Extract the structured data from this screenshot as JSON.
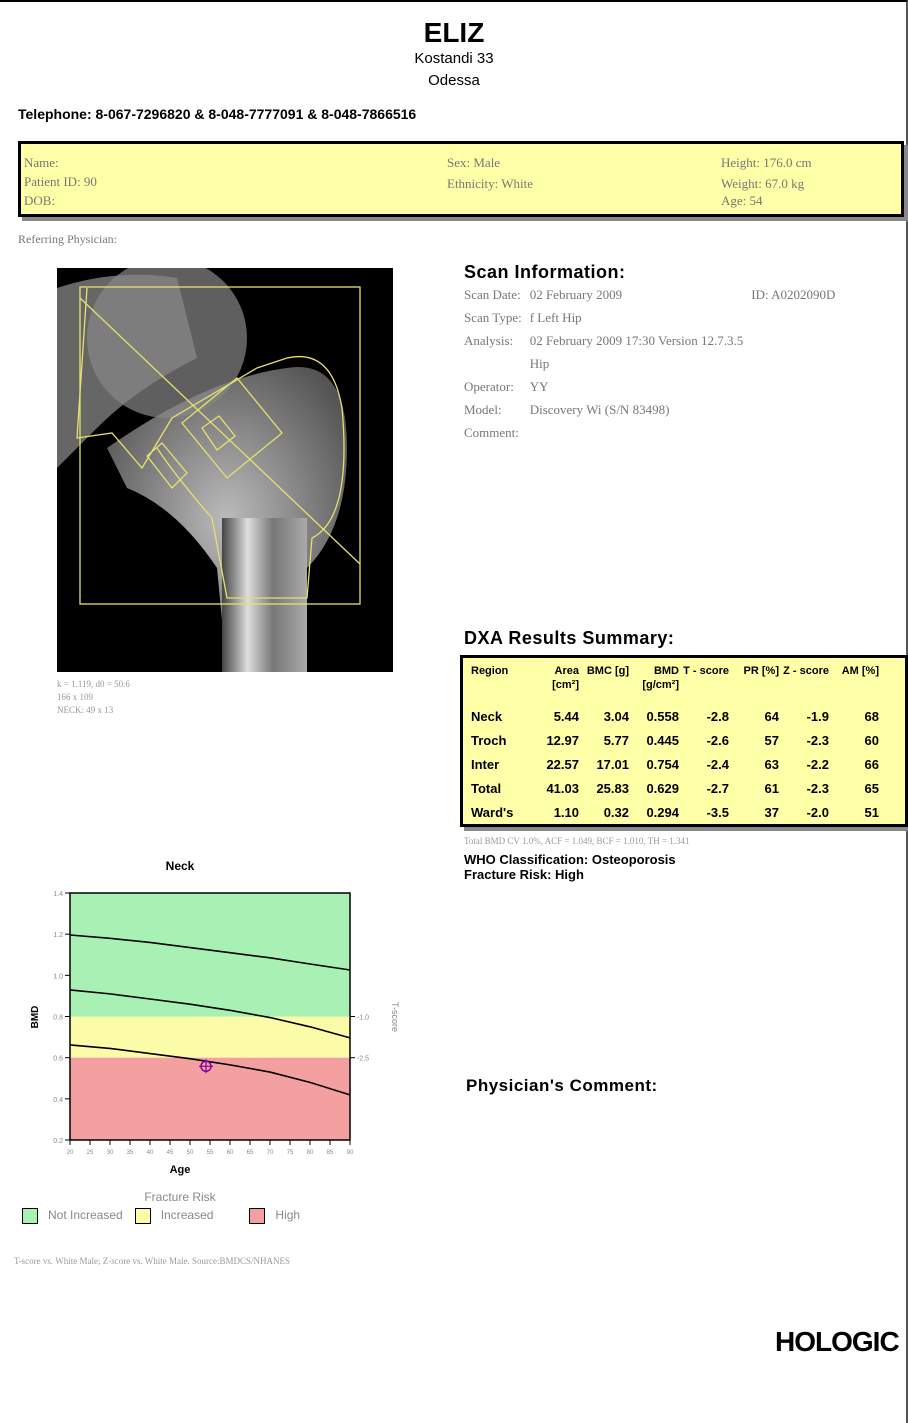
{
  "header": {
    "title": "ELIZ",
    "address": "Kostandi 33",
    "city": "Odessa",
    "phone": "Telephone: 8-067-7296820 & 8-048-7777091 & 8-048-7866516"
  },
  "patient": {
    "name": "Name:",
    "patient_id": "Patient ID: 90",
    "dob": "DOB:",
    "sex": "Sex: Male",
    "ethnicity": "Ethnicity: White",
    "height": "Height: 176.0 cm",
    "weight": "Weight: 67.0 kg",
    "age": "Age: 54"
  },
  "referring": "Referring Physician:",
  "image_caption": [
    "k = 1.119, d0 = 50.6",
    "166 x 109",
    "NECK: 49 x 13"
  ],
  "scan_info": {
    "title": "Scan Information:",
    "rows": [
      [
        "Scan Date:",
        "02 February 2009",
        "ID: A0202090D"
      ],
      [
        "Scan Type:",
        "f Left Hip"
      ],
      [
        "Analysis:",
        "02 February 2009 17:30 Version 12.7.3.5"
      ],
      [
        "",
        "Hip"
      ],
      [
        "Operator:",
        "YY"
      ],
      [
        "Model:",
        "Discovery Wi (S/N 83498)"
      ],
      [
        "Comment:"
      ]
    ]
  },
  "results": {
    "title": "DXA Results Summary:",
    "header": [
      "Region",
      "Area [cm²]",
      "BMC [g]",
      "BMD [g/cm²]",
      "T - score",
      "PR [%]",
      "Z - score",
      "AM [%]"
    ],
    "rows": [
      [
        "Neck",
        "5.44",
        "3.04",
        "0.558",
        "-2.8",
        "64",
        "-1.9",
        "68"
      ],
      [
        "Troch",
        "12.97",
        "5.77",
        "0.445",
        "-2.6",
        "57",
        "-2.3",
        "60"
      ],
      [
        "Inter",
        "22.57",
        "17.01",
        "0.754",
        "-2.4",
        "63",
        "-2.2",
        "66"
      ],
      [
        "Total",
        "41.03",
        "25.83",
        "0.629",
        "-2.7",
        "61",
        "-2.3",
        "65"
      ],
      [
        "Ward's",
        "1.10",
        "0.32",
        "0.294",
        "-3.5",
        "37",
        "-2.0",
        "51"
      ]
    ],
    "note": "Total BMD CV 1.0%, ACF = 1.049, BCF = 1.010, TH = 1.341",
    "who": "WHO Classification: Osteoporosis",
    "risk": "Fracture Risk: High"
  },
  "chart_data": {
    "type": "line",
    "title": "Neck",
    "x_label": "Age",
    "y_label": "BMD",
    "y2_label": "T-score",
    "xlim": [
      20,
      90
    ],
    "xticks": [
      20,
      25,
      30,
      35,
      40,
      45,
      50,
      55,
      60,
      65,
      70,
      75,
      80,
      85,
      90
    ],
    "ylim": [
      0.2,
      1.4
    ],
    "yticks": [
      0.2,
      0.4,
      0.6,
      0.8,
      {
        "value": 1,
        "label": "1.0"
      },
      1.2,
      1.4
    ],
    "y2lim": [
      -5.5,
      3.5
    ],
    "y2ticks": [
      {
        "value": -1,
        "label": "-1.0"
      },
      {
        "value": -2.5,
        "label": "-2.5"
      }
    ],
    "x": [
      20,
      30,
      40,
      50,
      60,
      70,
      80,
      90
    ],
    "series": [
      {
        "color": "#000000",
        "values": [
          1.196,
          1.18,
          1.16,
          1.135,
          1.11,
          1.085,
          1.055,
          1.026
        ]
      },
      {
        "color": "#000000",
        "values": [
          0.929,
          0.91,
          0.885,
          0.86,
          0.83,
          0.795,
          0.75,
          0.696
        ]
      },
      {
        "color": "#000000",
        "values": [
          0.662,
          0.645,
          0.62,
          0.595,
          0.565,
          0.53,
          0.48,
          0.419
        ]
      }
    ],
    "point": {
      "x": 54,
      "y": 0.558,
      "color": "#8000a0"
    },
    "legend_title": "Fracture Risk",
    "zones": [
      {
        "name": "Not Increased",
        "from": 0.8,
        "to": 1.4,
        "color": "#a8f0b4"
      },
      {
        "name": "Increased",
        "from": 0.6,
        "to": 0.8,
        "color": "#fbfba8"
      },
      {
        "name": "High",
        "from": 0.2,
        "to": 0.6,
        "color": "#f4a0a0"
      }
    ]
  },
  "footnote": "T-score vs. White Male; Z-score vs. White Male. Source:BMDCS/NHANES",
  "physician_comment": "Physician's Comment:",
  "logo": "HOLOGIC"
}
